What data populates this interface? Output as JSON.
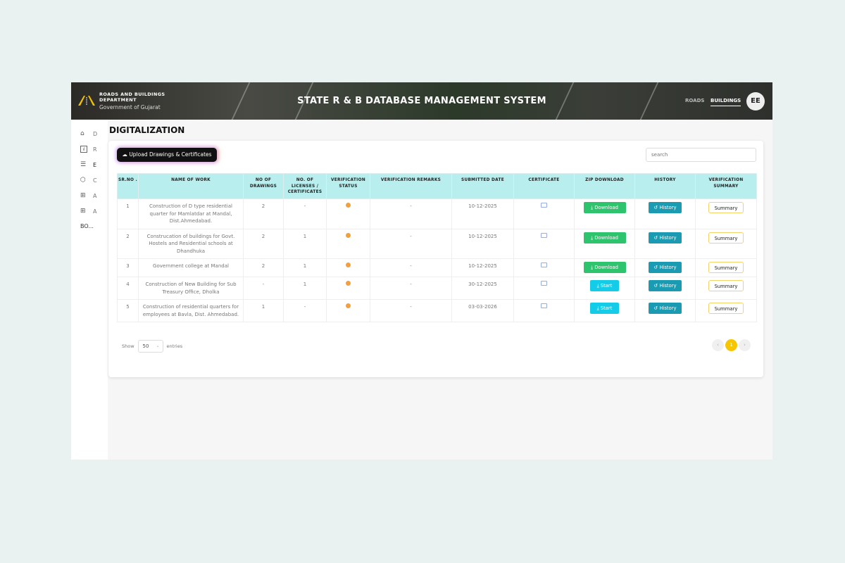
{
  "header": {
    "dept_line1": "ROADS AND BUILDINGS",
    "dept_line2": "DEPARTMENT",
    "gov": "Government of Gujarat",
    "title": "STATE R & B DATABASE MANAGEMENT SYSTEM",
    "nav": [
      "ROADS",
      "BUILDINGS"
    ],
    "active_nav": "BUILDINGS",
    "avatar": "EE"
  },
  "sidebar": {
    "items": [
      {
        "icon": "home-icon",
        "label": "D"
      },
      {
        "icon": "chart-icon",
        "label": "R"
      },
      {
        "icon": "list-icon",
        "label": "E"
      },
      {
        "icon": "cube-icon",
        "label": "C"
      },
      {
        "icon": "plus-box-icon",
        "label": "A"
      },
      {
        "icon": "plus-box-icon",
        "label": "A"
      },
      {
        "icon": "",
        "label": "BO..."
      }
    ]
  },
  "page": {
    "title": "DIGITALIZATION",
    "upload_label": "Upload Drawings & Certificates",
    "search_placeholder": "search"
  },
  "table": {
    "headers": [
      "SR.NO .",
      "NAME OF WORK",
      "NO OF DRAWINGS",
      "NO. OF LICENSES / CERTIFICATES",
      "VERIFICATION STATUS",
      "VERIFICATION REMARKS",
      "SUBMITTED DATE",
      "CERTIFICATE",
      "ZIP DOWNLOAD",
      "HISTORY",
      "VERIFICATION SUMMARY"
    ],
    "rows": [
      {
        "sr": "1",
        "name": "Construction of D type residential quarter for Mamlatdar at Mandal, Dist.Ahmedabad.",
        "drawings": "2",
        "licenses": "-",
        "remarks": "-",
        "date": "10-12-2025",
        "zip": "Download",
        "history": "History",
        "summary": "Summary"
      },
      {
        "sr": "2",
        "name": "Construcation of buildings for Govt. Hostels and Residential schools at Dhandhuka",
        "drawings": "2",
        "licenses": "1",
        "remarks": "-",
        "date": "10-12-2025",
        "zip": "Download",
        "history": "History",
        "summary": "Summary"
      },
      {
        "sr": "3",
        "name": "Government college at Mandal",
        "drawings": "2",
        "licenses": "1",
        "remarks": "-",
        "date": "10-12-2025",
        "zip": "Download",
        "history": "History",
        "summary": "Summary"
      },
      {
        "sr": "4",
        "name": "Construction of New Building for Sub Treasury Office, Dholka",
        "drawings": "-",
        "licenses": "1",
        "remarks": "-",
        "date": "30-12-2025",
        "zip": "Start",
        "history": "History",
        "summary": "Summary"
      },
      {
        "sr": "5",
        "name": "Construction of residential quarters for employees at Bavla, Dist. Ahmedabad.",
        "drawings": "1",
        "licenses": "-",
        "remarks": "-",
        "date": "03-03-2026",
        "zip": "Start",
        "history": "History",
        "summary": "Summary"
      }
    ]
  },
  "footer": {
    "show": "Show",
    "entries_value": "50",
    "entries": "entries",
    "prev": "‹",
    "page": "1",
    "next": "›"
  },
  "colors": {
    "header_bg": "#b8eeee",
    "download": "#2ec46e",
    "start": "#15cce8",
    "history": "#1a9bb2",
    "page_active": "#f7c600",
    "status_pending": "#f0a040"
  }
}
